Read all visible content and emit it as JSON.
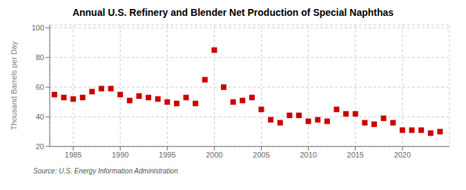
{
  "chart_data": {
    "type": "scatter",
    "title": "Annual U.S. Refinery and Blender Net Production of Special Naphthas",
    "ylabel": "Thousand Barrels per Day",
    "annotations": [
      "Source: U.S. Energy Information Administration"
    ],
    "color": "#cc0000",
    "marker": "square",
    "grid": true,
    "xlim": [
      1982.5,
      2025
    ],
    "ylim": [
      20,
      102
    ],
    "yticks": [
      20,
      40,
      60,
      80,
      100
    ],
    "xticks": [
      1985,
      1990,
      1995,
      2000,
      2005,
      2010,
      2015,
      2020
    ],
    "x": [
      1983,
      1984,
      1985,
      1986,
      1987,
      1988,
      1989,
      1990,
      1991,
      1992,
      1993,
      1994,
      1995,
      1996,
      1997,
      1998,
      1999,
      2000,
      2001,
      2002,
      2003,
      2004,
      2005,
      2006,
      2007,
      2008,
      2009,
      2010,
      2011,
      2012,
      2013,
      2014,
      2015,
      2016,
      2017,
      2018,
      2019,
      2020,
      2021,
      2022,
      2023,
      2024
    ],
    "values": [
      55,
      53,
      52,
      53,
      57,
      59,
      59,
      55,
      51,
      54,
      53,
      52,
      50,
      49,
      53,
      49,
      65,
      85,
      60,
      50,
      51,
      53,
      45,
      38,
      36,
      41,
      41,
      37,
      38,
      37,
      45,
      42,
      42,
      36,
      35,
      39,
      36,
      31,
      31,
      31,
      29,
      30
    ]
  }
}
